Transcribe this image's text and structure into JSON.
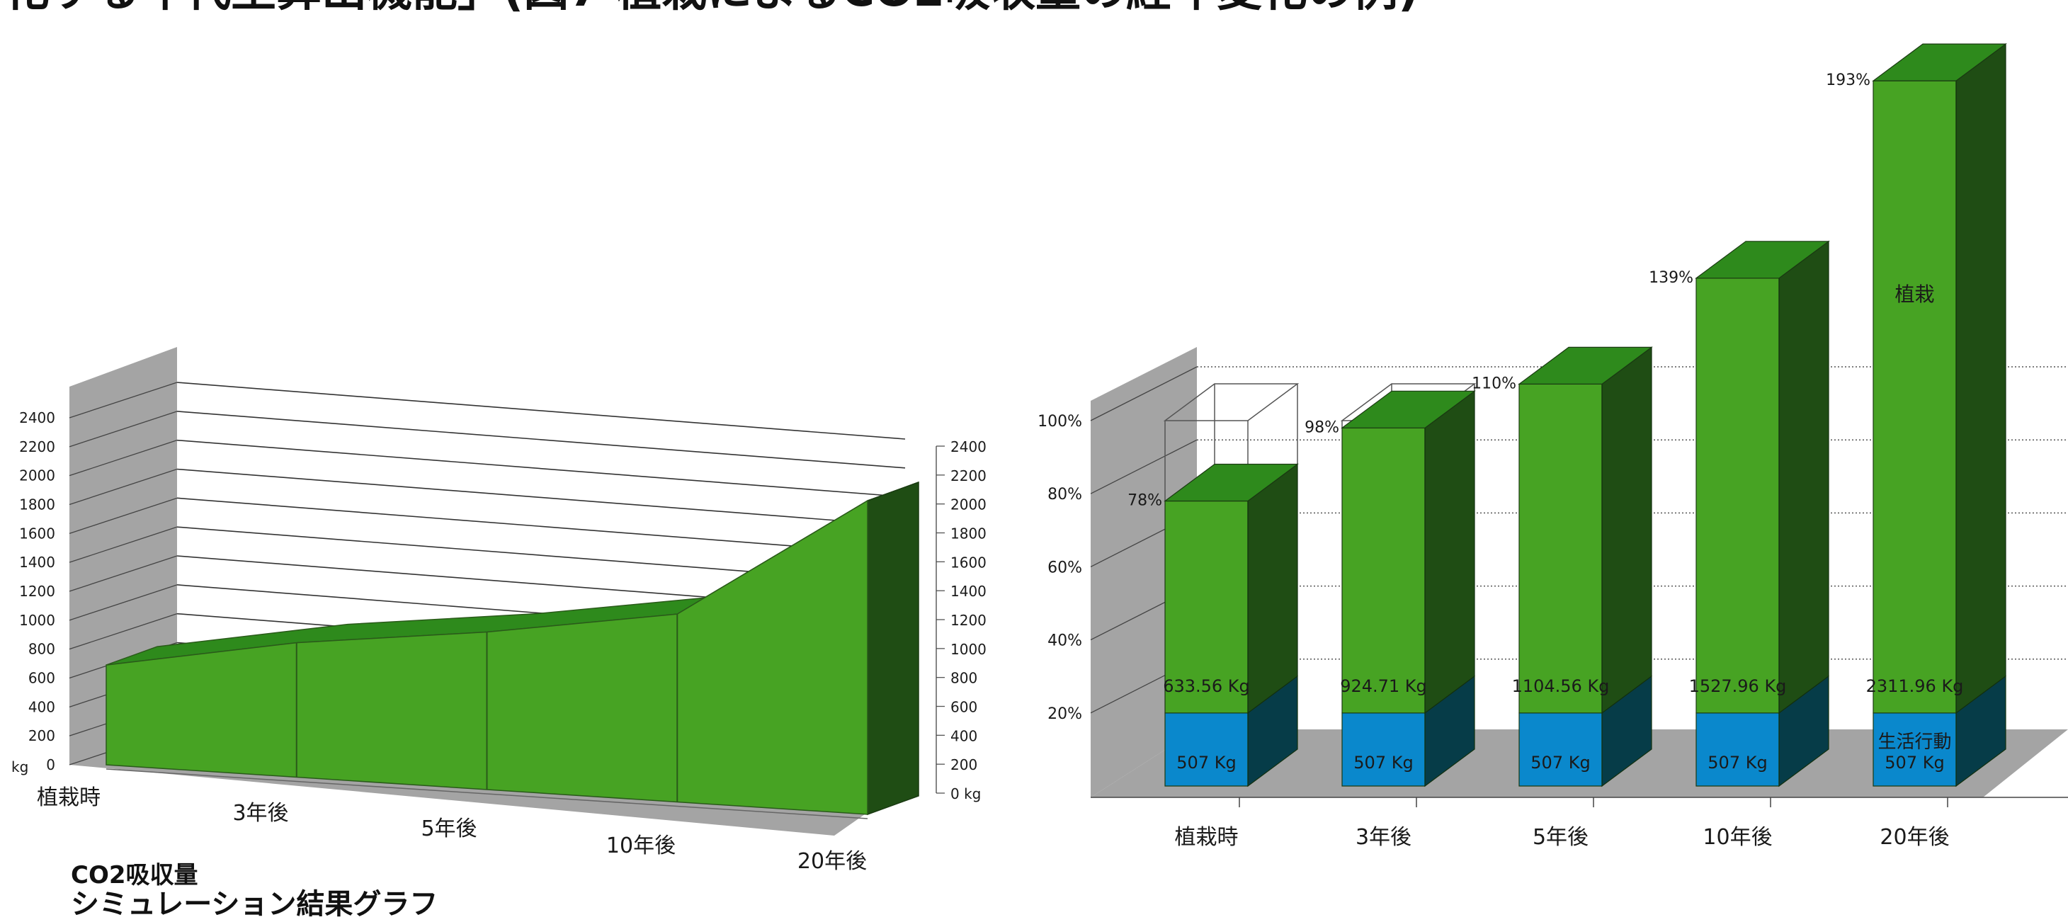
{
  "header": {
    "cropped_title": "化する年代生算出機能」(図7 植栽によるCO2吸収量の経年変化の例)"
  },
  "caption": {
    "line1": "CO2吸収量",
    "line2": "シミュレーション結果グラフ"
  },
  "colors": {
    "green_front": "#47a323",
    "green_top": "#2e8a1c",
    "green_side": "#1f4d14",
    "blue_front": "#0a88cc",
    "blue_side": "#063c48",
    "back_wall": "#ffffff",
    "left_wall": "#a4a4a4",
    "floor": "#a4a4a4"
  },
  "chart_data": [
    {
      "type": "area",
      "categories": [
        "植栽時",
        "3年後",
        "5年後",
        "10年後",
        "20年後"
      ],
      "series": [
        {
          "values": [
            690,
            930,
            1090,
            1300,
            2170
          ]
        }
      ],
      "ylim": [
        0,
        2400
      ],
      "yticks": [
        0,
        200,
        400,
        600,
        800,
        1000,
        1200,
        1400,
        1600,
        1800,
        2000,
        2200,
        2400
      ],
      "y_unit_left": "kg",
      "y_unit_right": "kg",
      "grid": true,
      "three_d": true
    },
    {
      "type": "bar",
      "stacked": true,
      "three_d": true,
      "categories": [
        "植栽時",
        "3年後",
        "5年後",
        "10年後",
        "20年後"
      ],
      "series": [
        {
          "name": "生活行動",
          "values": [
            507,
            507,
            507,
            507,
            507
          ],
          "labels": [
            "507 Kg",
            "507 Kg",
            "507 Kg",
            "507 Kg",
            "507 Kg"
          ]
        },
        {
          "name": "植栽",
          "values": [
            126.56,
            417.71,
            597.56,
            1020.96,
            1804.96
          ],
          "labels": [
            "633.56 Kg",
            "924.71 Kg",
            "1104.56 Kg",
            "1527.96 Kg",
            "2311.96 Kg"
          ]
        }
      ],
      "percent_labels": [
        "78%",
        "98%",
        "110%",
        "139%",
        "193%"
      ],
      "percent_values": [
        78,
        98,
        110,
        139,
        193
      ],
      "reference_percent": [
        100,
        100
      ],
      "yticks_labels": [
        "20%",
        "40%",
        "60%",
        "80%",
        "100%"
      ],
      "yticks": [
        20,
        40,
        60,
        80,
        100
      ],
      "grid": true
    }
  ]
}
